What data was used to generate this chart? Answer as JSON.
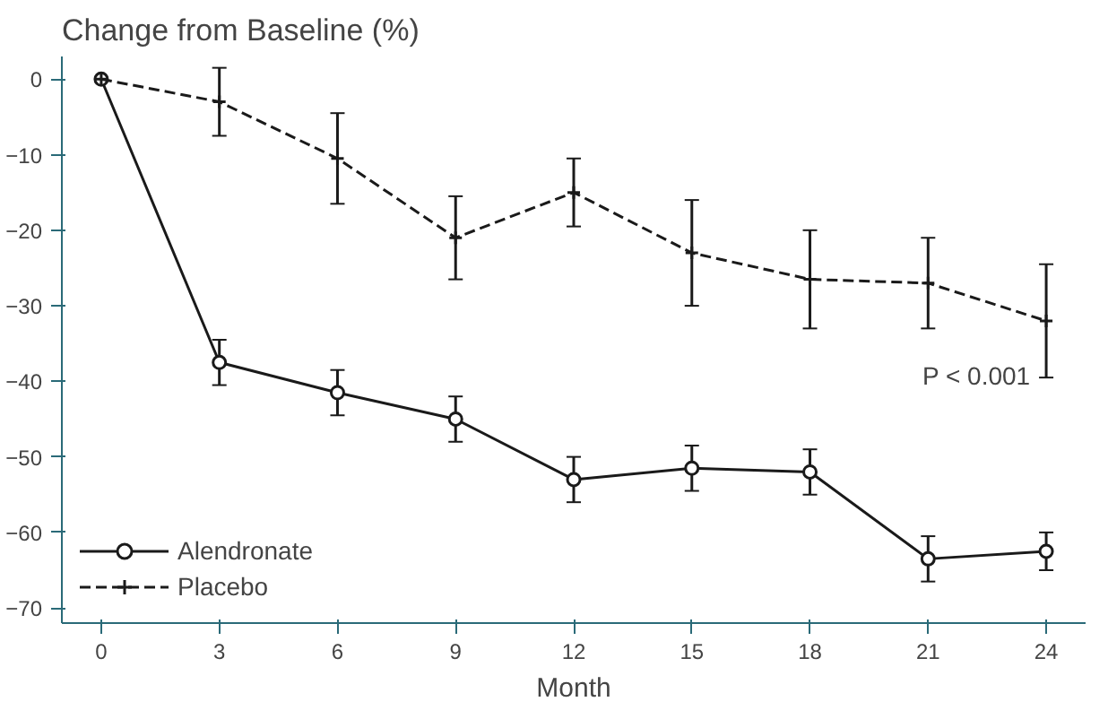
{
  "chart_data": {
    "type": "line",
    "title": "Change from Baseline (%)",
    "xlabel": "Month",
    "x": [
      0,
      3,
      6,
      9,
      12,
      15,
      18,
      21,
      24
    ],
    "series": [
      {
        "name": "Alendronate",
        "color": "#1a1a1a",
        "marker": "circle",
        "line_style": "solid",
        "values": [
          0,
          -37.5,
          -41.5,
          -45,
          -53,
          -51.5,
          -52,
          -63.5,
          -62.5
        ],
        "errors": [
          null,
          3,
          3,
          3,
          3,
          3,
          3,
          3,
          2.5
        ]
      },
      {
        "name": "Placebo",
        "color": "#1a1a1a",
        "marker": "cross",
        "line_style": "dashed",
        "values": [
          0,
          -3,
          -10.5,
          -21,
          -15,
          -23,
          -26.5,
          -27,
          -32
        ],
        "errors": [
          null,
          4.5,
          6,
          5.5,
          4.5,
          7,
          6.5,
          6,
          7.5
        ]
      }
    ],
    "annotations": [
      "P < 0.001"
    ],
    "xlim": [
      -1,
      25
    ],
    "ylim": [
      -72,
      3
    ],
    "xticks": [
      0,
      3,
      6,
      9,
      12,
      15,
      18,
      21,
      24
    ],
    "yticks": [
      -70,
      -60,
      -50,
      -40,
      -30,
      -20,
      -10,
      0
    ],
    "grid": false,
    "legend": "bottom left"
  }
}
